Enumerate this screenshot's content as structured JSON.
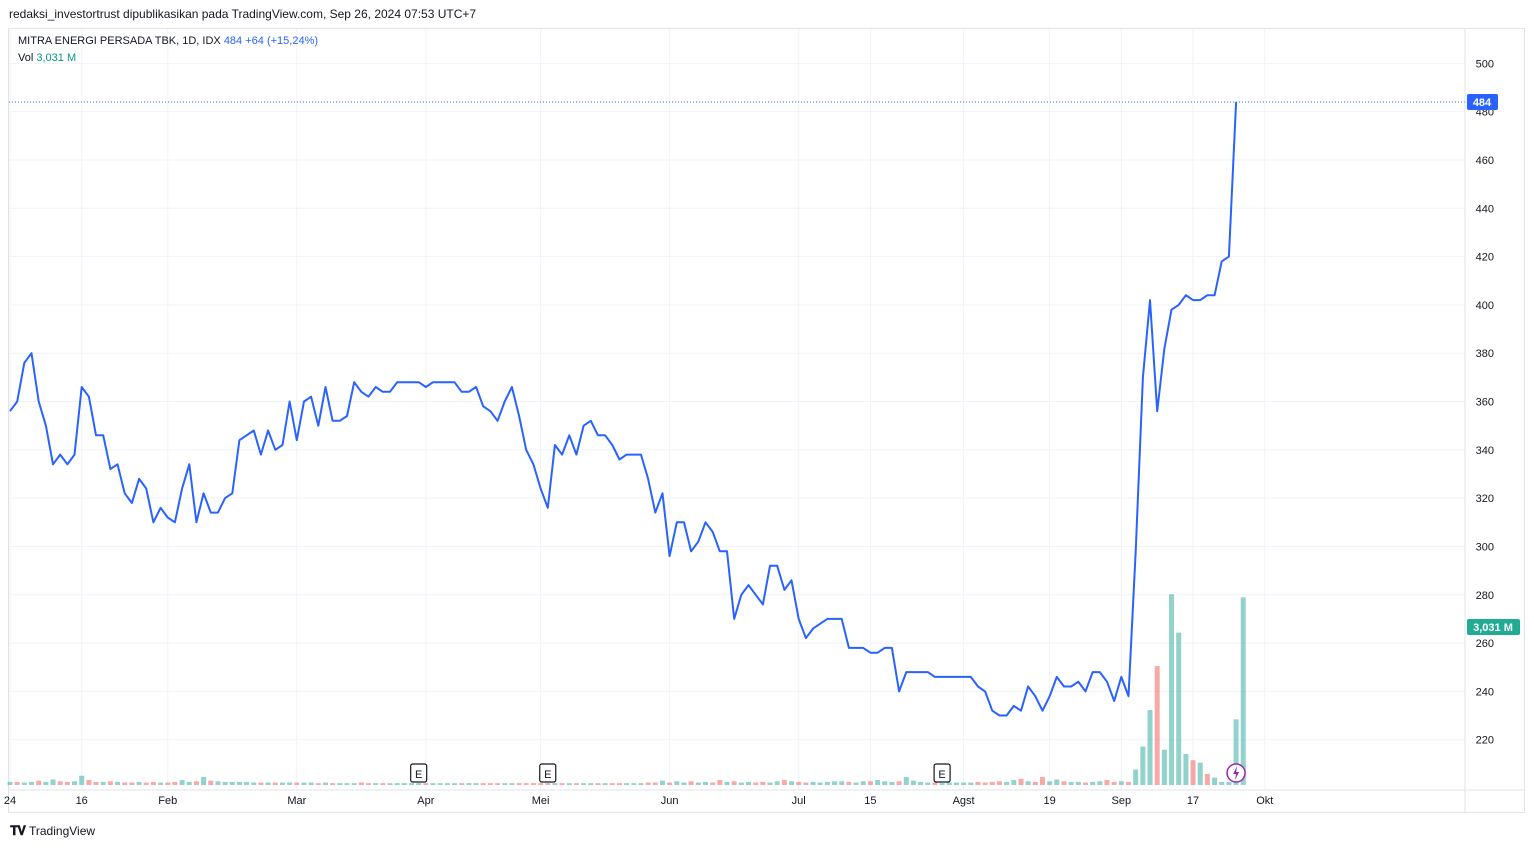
{
  "header": {
    "text": "redaksi_investortrust dipublikasikan pada TradingView.com, Sep 26, 2024 07:53 UTC+7"
  },
  "legend": {
    "symbol": "MITRA ENERGI PERSADA TBK, 1D, IDX",
    "last": "484",
    "change": "+64 (+15,24%)",
    "vol_label": "Vol",
    "vol_value": "3,031 M"
  },
  "footer": {
    "brand": "TradingView",
    "logo_icon": "tradingview-logo-icon"
  },
  "colors": {
    "line": "#2962ff",
    "vol_up": "#26a69a",
    "vol_down": "#ef5350",
    "last_badge": "#2962ff",
    "vol_badge": "#22ab94",
    "grid": "#f0f3fa"
  },
  "chart_data": {
    "type": "line",
    "title": "MITRA ENERGI PERSADA TBK, 1D, IDX",
    "ylim": [
      200,
      508
    ],
    "y_ticks": [
      220,
      240,
      260,
      280,
      300,
      320,
      340,
      360,
      380,
      400,
      420,
      440,
      460,
      480,
      500
    ],
    "x_ticks": [
      {
        "label": "24",
        "i": 0
      },
      {
        "label": "16",
        "i": 10
      },
      {
        "label": "Feb",
        "i": 22
      },
      {
        "label": "Mar",
        "i": 40
      },
      {
        "label": "Apr",
        "i": 58
      },
      {
        "label": "Mei",
        "i": 74
      },
      {
        "label": "Jun",
        "i": 92
      },
      {
        "label": "Jul",
        "i": 110
      },
      {
        "label": "15",
        "i": 120
      },
      {
        "label": "Agst",
        "i": 133
      },
      {
        "label": "19",
        "i": 145
      },
      {
        "label": "Sep",
        "i": 155
      },
      {
        "label": "17",
        "i": 165
      },
      {
        "label": "Okt",
        "i": 175
      }
    ],
    "series": [
      {
        "values": [
          356,
          360,
          376,
          380,
          360,
          350,
          334,
          338,
          334,
          338,
          366,
          362,
          346,
          346,
          332,
          334,
          322,
          318,
          328,
          324,
          310,
          316,
          312,
          310,
          324,
          334,
          310,
          322,
          314,
          314,
          320,
          322,
          344,
          346,
          348,
          338,
          348,
          340,
          342,
          360,
          344,
          360,
          362,
          350,
          366,
          352,
          352,
          354,
          368,
          364,
          362,
          366,
          364,
          364,
          368,
          368,
          368,
          368,
          366,
          368,
          368,
          368,
          368,
          364,
          364,
          366,
          358,
          356,
          352,
          360,
          366,
          354,
          340,
          334,
          324,
          316,
          342,
          338,
          346,
          338,
          350,
          352,
          346,
          346,
          342,
          336,
          338,
          338,
          338,
          328,
          314,
          322,
          296,
          310,
          310,
          298,
          302,
          310,
          306,
          298,
          298,
          270,
          280,
          284,
          280,
          276,
          292,
          292,
          282,
          286,
          270,
          262,
          266,
          268,
          270,
          270,
          270,
          258,
          258,
          258,
          256,
          256,
          258,
          258,
          240,
          248,
          248,
          248,
          248,
          246,
          246,
          246,
          246,
          246,
          246,
          242,
          240,
          232,
          230,
          230,
          234,
          232,
          242,
          238,
          232,
          238,
          246,
          242,
          242,
          244,
          240,
          248,
          248,
          244,
          236,
          246,
          238,
          298,
          370,
          402,
          356,
          382,
          398,
          400,
          404,
          402,
          402,
          404,
          404,
          418,
          420,
          484
        ]
      }
    ],
    "volume": {
      "max_label_value": 3.031,
      "unit": "M",
      "values": [
        0.05,
        0.05,
        0.04,
        0.05,
        0.07,
        0.05,
        0.09,
        0.06,
        0.05,
        0.06,
        0.15,
        0.08,
        0.05,
        0.05,
        0.06,
        0.05,
        0.04,
        0.04,
        0.05,
        0.04,
        0.05,
        0.04,
        0.04,
        0.05,
        0.08,
        0.05,
        0.06,
        0.13,
        0.07,
        0.06,
        0.05,
        0.05,
        0.05,
        0.05,
        0.04,
        0.04,
        0.04,
        0.04,
        0.04,
        0.04,
        0.04,
        0.04,
        0.04,
        0.03,
        0.04,
        0.03,
        0.03,
        0.03,
        0.03,
        0.04,
        0.03,
        0.03,
        0.03,
        0.03,
        0.03,
        0.03,
        0.03,
        0.03,
        0.03,
        0.03,
        0.03,
        0.03,
        0.03,
        0.03,
        0.03,
        0.03,
        0.03,
        0.03,
        0.03,
        0.03,
        0.03,
        0.03,
        0.03,
        0.03,
        0.03,
        0.03,
        0.03,
        0.03,
        0.03,
        0.03,
        0.03,
        0.03,
        0.03,
        0.03,
        0.03,
        0.03,
        0.03,
        0.03,
        0.03,
        0.04,
        0.04,
        0.07,
        0.04,
        0.06,
        0.04,
        0.06,
        0.04,
        0.05,
        0.04,
        0.08,
        0.05,
        0.06,
        0.04,
        0.05,
        0.04,
        0.05,
        0.04,
        0.06,
        0.08,
        0.06,
        0.05,
        0.04,
        0.05,
        0.04,
        0.05,
        0.06,
        0.06,
        0.05,
        0.04,
        0.06,
        0.06,
        0.08,
        0.06,
        0.05,
        0.06,
        0.13,
        0.07,
        0.05,
        0.04,
        0.04,
        0.03,
        0.04,
        0.04,
        0.04,
        0.04,
        0.05,
        0.04,
        0.05,
        0.06,
        0.05,
        0.08,
        0.1,
        0.06,
        0.05,
        0.13,
        0.06,
        0.09,
        0.06,
        0.05,
        0.05,
        0.04,
        0.05,
        0.06,
        0.08,
        0.05,
        0.06,
        0.05,
        0.25,
        0.62,
        1.21,
        1.92,
        0.57,
        3.08,
        2.46,
        0.5,
        0.4,
        0.36,
        0.18,
        0.12,
        0.05,
        0.05,
        1.06,
        3.031
      ],
      "down": [
        0,
        1,
        0,
        0,
        1,
        0,
        0,
        1,
        1,
        0,
        0,
        1,
        1,
        0,
        1,
        0,
        1,
        1,
        0,
        1,
        1,
        0,
        1,
        1,
        0,
        0,
        1,
        0,
        1,
        0,
        0,
        0,
        0,
        0,
        0,
        1,
        0,
        1,
        0,
        0,
        1,
        0,
        0,
        1,
        0,
        1,
        0,
        0,
        0,
        1,
        1,
        0,
        1,
        0,
        0,
        0,
        0,
        0,
        1,
        0,
        0,
        0,
        0,
        1,
        0,
        0,
        1,
        1,
        1,
        0,
        0,
        1,
        1,
        1,
        1,
        1,
        0,
        1,
        0,
        1,
        0,
        0,
        1,
        0,
        1,
        1,
        0,
        0,
        0,
        1,
        1,
        0,
        1,
        0,
        0,
        1,
        0,
        0,
        1,
        1,
        0,
        1,
        0,
        0,
        1,
        1,
        0,
        0,
        1,
        0,
        1,
        1,
        0,
        0,
        0,
        0,
        0,
        1,
        0,
        0,
        1,
        0,
        0,
        0,
        1,
        0,
        0,
        0,
        0,
        1,
        0,
        0,
        0,
        0,
        0,
        1,
        1,
        1,
        1,
        0,
        0,
        1,
        0,
        1,
        1,
        0,
        0,
        1,
        0,
        0,
        1,
        0,
        0,
        1,
        1,
        0,
        1,
        0,
        0,
        0,
        1,
        0,
        0,
        0,
        0,
        1,
        0,
        1,
        0,
        0,
        0,
        0
      ]
    },
    "earnings_markers": [
      {
        "label": "E",
        "i": 57
      },
      {
        "label": "E",
        "i": 75
      },
      {
        "label": "E",
        "i": 130
      }
    ],
    "last_price_label": "484",
    "last_volume_label": "3,031 M"
  }
}
